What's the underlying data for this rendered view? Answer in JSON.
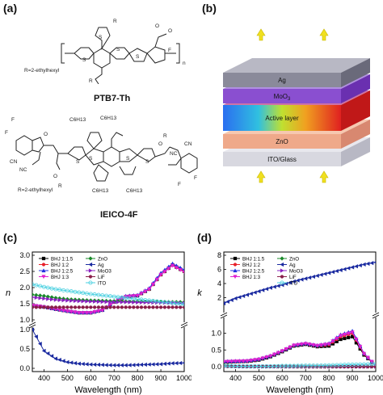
{
  "panels": {
    "a": "(a)",
    "b": "(b)",
    "c": "(c)",
    "d": "(d)"
  },
  "molecules": {
    "ptb7": {
      "name": "PTB7-Th",
      "side_chain": "R=2-ethylhexyl",
      "atoms": [
        "R",
        "O",
        "O",
        "F",
        "S",
        "S",
        "S",
        "S",
        "R",
        "n"
      ]
    },
    "ieico": {
      "name": "IEICO-4F",
      "side_chain": "R=2-ethylhexyl",
      "atoms": [
        "F",
        "F",
        "O",
        "CN",
        "NC",
        "C6H13",
        "C6H13",
        "C6H13",
        "C6H13",
        "S",
        "S",
        "S",
        "S",
        "O",
        "R",
        "O",
        "R",
        "CN",
        "NC",
        "F",
        "F"
      ]
    }
  },
  "device": {
    "layers": [
      {
        "label": "Ag",
        "color": "#8a8a9a"
      },
      {
        "label": "MoO3",
        "color": "#8a4fd0"
      },
      {
        "label": "Active layer",
        "color": "gradient"
      },
      {
        "label": "ZnO",
        "color": "#efa98a"
      },
      {
        "label": "ITO/Glass",
        "color": "#d8d8e0"
      }
    ]
  },
  "chart_data": [
    {
      "type": "line",
      "panel": "c",
      "xlabel": "Wavelength (nm)",
      "ylabel": "n",
      "x_ticks": [
        "400",
        "500",
        "600",
        "700",
        "800",
        "900",
        "1000"
      ],
      "y_ticks_upper": [
        "1.0",
        "1.5",
        "2.0",
        "2.5",
        "3.0"
      ],
      "y_ticks_lower": [
        "0.0",
        "0.5",
        "1.0"
      ],
      "broken_axis": true,
      "legend": [
        "BHJ 1:1.5",
        "BHJ 1:2",
        "BHJ 1:2.5",
        "BHJ 1:3",
        "ZnO",
        "Ag",
        "MoO3",
        "LiF",
        "ITO"
      ],
      "x": [
        350,
        400,
        450,
        500,
        550,
        600,
        650,
        700,
        750,
        800,
        850,
        900,
        950,
        1000
      ],
      "series": [
        {
          "name": "BHJ 1:1.5",
          "color": "#000000",
          "values": [
            1.45,
            1.4,
            1.33,
            1.27,
            1.22,
            1.22,
            1.3,
            1.55,
            1.72,
            1.75,
            1.95,
            2.4,
            2.7,
            2.5
          ]
        },
        {
          "name": "BHJ 1:2",
          "color": "#e8202a",
          "values": [
            1.45,
            1.4,
            1.33,
            1.27,
            1.22,
            1.22,
            1.3,
            1.55,
            1.72,
            1.75,
            1.95,
            2.4,
            2.7,
            2.5
          ]
        },
        {
          "name": "BHJ 1:2.5",
          "color": "#2030e0",
          "values": [
            1.45,
            1.41,
            1.34,
            1.28,
            1.23,
            1.23,
            1.31,
            1.57,
            1.74,
            1.77,
            1.98,
            2.45,
            2.74,
            2.55
          ]
        },
        {
          "name": "BHJ 1:3",
          "color": "#e020d0",
          "values": [
            1.45,
            1.4,
            1.33,
            1.27,
            1.22,
            1.22,
            1.3,
            1.55,
            1.72,
            1.75,
            1.95,
            2.4,
            2.68,
            2.48
          ]
        },
        {
          "name": "ZnO",
          "color": "#1a8a2a",
          "values": [
            1.78,
            1.74,
            1.68,
            1.64,
            1.62,
            1.6,
            1.59,
            1.58,
            1.57,
            1.57,
            1.56,
            1.56,
            1.55,
            1.55
          ]
        },
        {
          "name": "Ag",
          "color": "#1a2aa0",
          "values": [
            1.0,
            0.45,
            0.25,
            0.16,
            0.12,
            0.1,
            0.09,
            0.08,
            0.08,
            0.09,
            0.1,
            0.11,
            0.13,
            0.14
          ]
        },
        {
          "name": "MoO3",
          "color": "#8a20c0",
          "values": [
            1.7,
            1.66,
            1.62,
            1.6,
            1.58,
            1.57,
            1.56,
            1.55,
            1.55,
            1.54,
            1.54,
            1.53,
            1.53,
            1.52
          ]
        },
        {
          "name": "LiF",
          "color": "#8a1f4a",
          "values": [
            1.39,
            1.39,
            1.39,
            1.39,
            1.39,
            1.39,
            1.39,
            1.39,
            1.39,
            1.39,
            1.39,
            1.39,
            1.39,
            1.39
          ]
        },
        {
          "name": "ITO",
          "color": "#4ad0e0",
          "values": [
            2.1,
            2.02,
            1.95,
            1.9,
            1.85,
            1.8,
            1.76,
            1.72,
            1.68,
            1.64,
            1.6,
            1.56,
            1.52,
            1.48
          ]
        }
      ]
    },
    {
      "type": "line",
      "panel": "d",
      "xlabel": "Wavelength (nm)",
      "ylabel": "k",
      "x_ticks": [
        "400",
        "500",
        "600",
        "700",
        "800",
        "900",
        "1000"
      ],
      "y_ticks_upper": [
        "2",
        "4",
        "6",
        "8"
      ],
      "y_ticks_lower": [
        "0.0",
        "0.5",
        "1.0"
      ],
      "broken_axis": true,
      "legend": [
        "BHJ 1:1.5",
        "BHJ 1:2",
        "BHJ 1:2.5",
        "BHJ 1:3",
        "ZnO",
        "Ag",
        "MoO3",
        "LiF",
        "ITO"
      ],
      "x": [
        350,
        400,
        450,
        500,
        550,
        600,
        650,
        700,
        750,
        800,
        850,
        900,
        950,
        1000
      ],
      "series": [
        {
          "name": "BHJ 1:1.5",
          "color": "#000000",
          "values": [
            0.14,
            0.15,
            0.16,
            0.2,
            0.3,
            0.45,
            0.62,
            0.67,
            0.6,
            0.62,
            0.82,
            0.9,
            0.35,
            0.03
          ]
        },
        {
          "name": "BHJ 1:2",
          "color": "#e8202a",
          "values": [
            0.15,
            0.16,
            0.17,
            0.22,
            0.32,
            0.47,
            0.64,
            0.69,
            0.62,
            0.66,
            0.9,
            1.0,
            0.38,
            0.03
          ]
        },
        {
          "name": "BHJ 1:2.5",
          "color": "#2030e0",
          "values": [
            0.16,
            0.17,
            0.18,
            0.23,
            0.33,
            0.48,
            0.65,
            0.7,
            0.64,
            0.7,
            0.96,
            1.07,
            0.4,
            0.03
          ]
        },
        {
          "name": "BHJ 1:3",
          "color": "#e020d0",
          "values": [
            0.15,
            0.16,
            0.17,
            0.22,
            0.32,
            0.47,
            0.64,
            0.69,
            0.63,
            0.68,
            0.93,
            1.03,
            0.39,
            0.03
          ]
        },
        {
          "name": "ZnO",
          "color": "#1a8a2a",
          "values": [
            0.05,
            0.01,
            0.0,
            0.0,
            0.0,
            0.0,
            0.0,
            0.0,
            0.0,
            0.0,
            0.0,
            0.0,
            0.0,
            0.0
          ]
        },
        {
          "name": "Ag",
          "color": "#1a2aa0",
          "values": [
            1.2,
            1.9,
            2.4,
            2.9,
            3.4,
            3.8,
            4.3,
            4.7,
            5.1,
            5.5,
            5.9,
            6.3,
            6.7,
            7.0
          ]
        },
        {
          "name": "MoO3",
          "color": "#8a20c0",
          "values": [
            0.02,
            0.01,
            0.0,
            0.0,
            0.0,
            0.0,
            0.0,
            0.0,
            0.0,
            0.0,
            0.0,
            0.0,
            0.0,
            0.0
          ]
        },
        {
          "name": "LiF",
          "color": "#8a1f4a",
          "values": [
            0.0,
            0.0,
            0.0,
            0.0,
            0.0,
            0.0,
            0.0,
            0.0,
            0.0,
            0.0,
            0.0,
            0.0,
            0.0,
            0.0
          ]
        },
        {
          "name": "ITO",
          "color": "#4ad0e0",
          "values": [
            0.02,
            0.01,
            0.01,
            0.01,
            0.01,
            0.02,
            0.02,
            0.03,
            0.03,
            0.04,
            0.05,
            0.06,
            0.07,
            0.08
          ]
        }
      ]
    }
  ]
}
